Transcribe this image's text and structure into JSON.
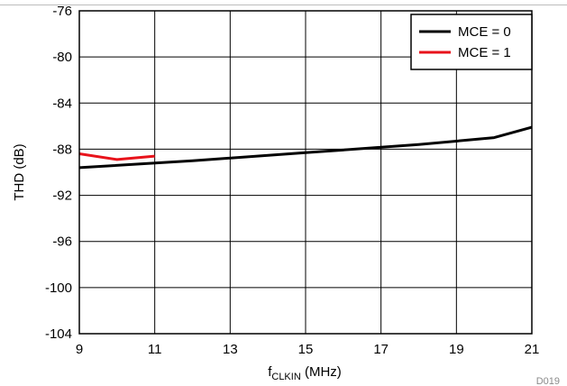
{
  "figure_id": "D019",
  "colors": {
    "grid": "#000000",
    "series_mce0": "#000000",
    "series_mce1": "#e8131b",
    "figure_id": "#8a8a8a"
  },
  "chart_data": {
    "type": "line",
    "xlabel": {
      "main": "f",
      "subscript": "CLKIN",
      "suffix": " (MHz)"
    },
    "ylabel": "THD (dB)",
    "xlim": [
      9,
      21
    ],
    "ylim": [
      -104,
      -76
    ],
    "xticks": [
      9,
      11,
      13,
      15,
      17,
      19,
      21
    ],
    "yticks": [
      -76,
      -80,
      -84,
      -88,
      -92,
      -96,
      -100,
      -104
    ],
    "xtick_labels": [
      "9",
      "11",
      "13",
      "15",
      "17",
      "19",
      "21"
    ],
    "ytick_labels": [
      "-76",
      "-80",
      "-84",
      "-88",
      "-92",
      "-96",
      "-100",
      "-104"
    ],
    "grid": true,
    "legend": {
      "placement": "top-right"
    },
    "series": [
      {
        "name": "MCE = 0",
        "color": "#000000",
        "x": [
          9,
          12,
          15,
          18,
          20,
          21
        ],
        "y": [
          -89.6,
          -89.0,
          -88.3,
          -87.6,
          -87.0,
          -86.1
        ]
      },
      {
        "name": "MCE = 1",
        "color": "#e8131b",
        "x": [
          9,
          10,
          11
        ],
        "y": [
          -88.4,
          -88.9,
          -88.6
        ]
      }
    ]
  }
}
